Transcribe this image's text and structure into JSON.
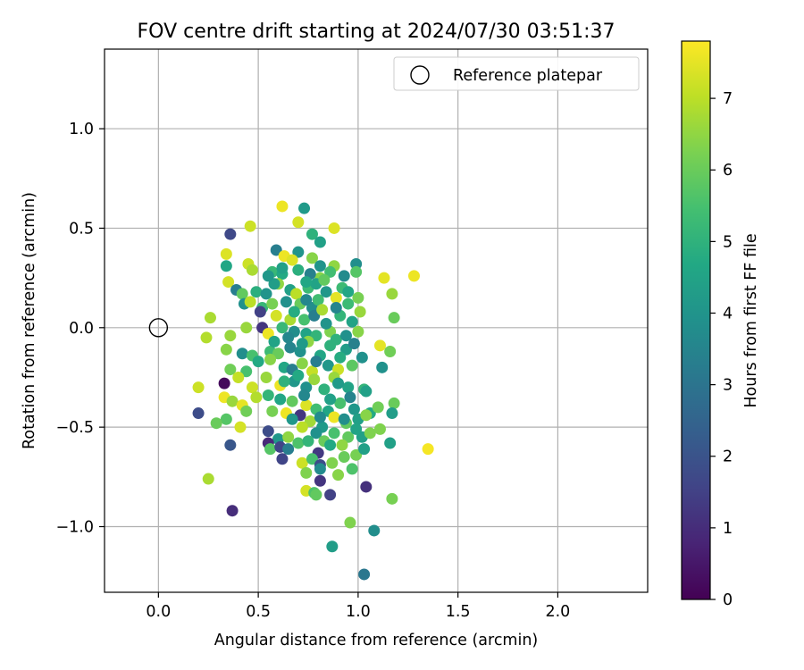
{
  "chart_data": {
    "type": "scatter",
    "title": "FOV centre drift starting at 2024/07/30 03:51:37",
    "xlabel": "Angular distance from reference (arcmin)",
    "ylabel": "Rotation from reference (arcmin)",
    "xlim": [
      -0.27,
      2.45
    ],
    "ylim": [
      -1.33,
      1.4
    ],
    "xticks": [
      "0.0",
      "0.5",
      "1.0",
      "1.5",
      "2.0"
    ],
    "xtick_values": [
      0.0,
      0.5,
      1.0,
      1.5,
      2.0
    ],
    "yticks": [
      "−1.0",
      "−0.5",
      "0.0",
      "0.5",
      "1.0"
    ],
    "ytick_values": [
      -1.0,
      -0.5,
      0.0,
      0.5,
      1.0
    ],
    "grid": true,
    "colormap": "viridis",
    "colorbar": {
      "label": "Hours from first FF file",
      "range": [
        0,
        7.8
      ],
      "ticks": [
        "0",
        "1",
        "2",
        "3",
        "4",
        "5",
        "6",
        "7"
      ],
      "tick_values": [
        0,
        1,
        2,
        3,
        4,
        5,
        6,
        7
      ]
    },
    "legend": {
      "label": "Reference platepar",
      "placement": "top-right"
    },
    "reference_point": {
      "x": 0.0,
      "y": 0.0
    },
    "points": [
      [
        0.73,
        0.6,
        4.2
      ],
      [
        0.62,
        0.61,
        7.6
      ],
      [
        0.7,
        0.53,
        7.3
      ],
      [
        0.46,
        0.51,
        7.2
      ],
      [
        0.36,
        0.47,
        1.7
      ],
      [
        0.88,
        0.5,
        7.4
      ],
      [
        0.77,
        0.47,
        5.0
      ],
      [
        0.81,
        0.43,
        4.4
      ],
      [
        0.59,
        0.39,
        3.3
      ],
      [
        0.7,
        0.38,
        4.0
      ],
      [
        0.34,
        0.37,
        7.4
      ],
      [
        0.63,
        0.36,
        7.6
      ],
      [
        0.67,
        0.34,
        7.4
      ],
      [
        0.77,
        0.35,
        6.4
      ],
      [
        0.88,
        0.31,
        6.5
      ],
      [
        0.99,
        0.32,
        3.8
      ],
      [
        0.34,
        0.31,
        4.6
      ],
      [
        0.45,
        0.32,
        7.2
      ],
      [
        0.47,
        0.29,
        6.8
      ],
      [
        0.57,
        0.28,
        5.2
      ],
      [
        0.62,
        0.27,
        4.7
      ],
      [
        0.7,
        0.29,
        4.9
      ],
      [
        0.81,
        0.25,
        6.4
      ],
      [
        0.86,
        0.28,
        5.4
      ],
      [
        0.99,
        0.28,
        5.7
      ],
      [
        1.13,
        0.25,
        7.5
      ],
      [
        1.28,
        0.26,
        7.6
      ],
      [
        0.35,
        0.23,
        7.3
      ],
      [
        0.39,
        0.19,
        3.3
      ],
      [
        0.42,
        0.17,
        5.9
      ],
      [
        0.49,
        0.18,
        4.9
      ],
      [
        0.54,
        0.17,
        4.0
      ],
      [
        0.6,
        0.22,
        6.5
      ],
      [
        0.66,
        0.19,
        4.4
      ],
      [
        0.69,
        0.17,
        7.0
      ],
      [
        0.75,
        0.2,
        5.3
      ],
      [
        0.79,
        0.22,
        4.5
      ],
      [
        0.83,
        0.24,
        5.9
      ],
      [
        0.92,
        0.2,
        5.3
      ],
      [
        1.0,
        0.15,
        6.2
      ],
      [
        1.17,
        0.17,
        6.6
      ],
      [
        0.43,
        0.12,
        3.9
      ],
      [
        0.46,
        0.13,
        7.0
      ],
      [
        0.52,
        0.1,
        5.2
      ],
      [
        0.57,
        0.12,
        6.2
      ],
      [
        0.64,
        0.13,
        3.9
      ],
      [
        0.71,
        0.12,
        6.0
      ],
      [
        0.77,
        0.1,
        3.8
      ],
      [
        0.8,
        0.14,
        5.4
      ],
      [
        0.89,
        0.15,
        7.5
      ],
      [
        0.95,
        0.12,
        5.3
      ],
      [
        1.01,
        0.08,
        6.6
      ],
      [
        0.51,
        0.08,
        1.5
      ],
      [
        0.59,
        0.06,
        7.3
      ],
      [
        0.66,
        0.04,
        6.8
      ],
      [
        0.73,
        0.04,
        5.5
      ],
      [
        0.78,
        0.06,
        3.3
      ],
      [
        0.82,
        0.09,
        6.8
      ],
      [
        0.91,
        0.06,
        5.1
      ],
      [
        0.97,
        0.03,
        4.5
      ],
      [
        1.18,
        0.05,
        6.0
      ],
      [
        0.26,
        0.05,
        6.8
      ],
      [
        0.44,
        0.0,
        6.6
      ],
      [
        0.52,
        0.0,
        1.2
      ],
      [
        0.55,
        -0.03,
        7.6
      ],
      [
        0.62,
        0.0,
        5.2
      ],
      [
        0.68,
        -0.02,
        3.8
      ],
      [
        0.74,
        -0.03,
        4.5
      ],
      [
        0.79,
        -0.04,
        5.1
      ],
      [
        0.86,
        -0.02,
        6.3
      ],
      [
        0.89,
        -0.06,
        5.0
      ],
      [
        1.0,
        -0.02,
        6.4
      ],
      [
        1.11,
        -0.09,
        7.5
      ],
      [
        0.24,
        -0.05,
        6.9
      ],
      [
        0.36,
        -0.04,
        6.6
      ],
      [
        0.34,
        -0.11,
        6.4
      ],
      [
        0.42,
        -0.13,
        3.8
      ],
      [
        0.47,
        -0.14,
        5.5
      ],
      [
        0.56,
        -0.12,
        5.3
      ],
      [
        0.6,
        -0.13,
        6.0
      ],
      [
        0.66,
        -0.1,
        3.5
      ],
      [
        0.71,
        -0.12,
        3.9
      ],
      [
        0.75,
        -0.07,
        6.5
      ],
      [
        0.81,
        -0.14,
        4.6
      ],
      [
        0.86,
        -0.09,
        5.0
      ],
      [
        0.94,
        -0.11,
        4.3
      ],
      [
        1.02,
        -0.15,
        3.9
      ],
      [
        1.16,
        -0.12,
        6.1
      ],
      [
        0.36,
        -0.21,
        6.1
      ],
      [
        0.44,
        -0.22,
        5.5
      ],
      [
        0.5,
        -0.17,
        4.7
      ],
      [
        0.56,
        -0.16,
        6.4
      ],
      [
        0.63,
        -0.2,
        4.6
      ],
      [
        0.67,
        -0.21,
        3.3
      ],
      [
        0.72,
        -0.18,
        6.4
      ],
      [
        0.77,
        -0.22,
        7.1
      ],
      [
        0.85,
        -0.19,
        4.1
      ],
      [
        0.9,
        -0.21,
        7.2
      ],
      [
        0.97,
        -0.19,
        5.8
      ],
      [
        1.12,
        -0.2,
        3.9
      ],
      [
        0.2,
        -0.3,
        7.2
      ],
      [
        0.33,
        -0.28,
        0.2
      ],
      [
        0.4,
        -0.25,
        7.1
      ],
      [
        0.47,
        -0.3,
        7.2
      ],
      [
        0.54,
        -0.25,
        6.6
      ],
      [
        0.61,
        -0.29,
        7.6
      ],
      [
        0.68,
        -0.27,
        4.1
      ],
      [
        0.74,
        -0.3,
        3.9
      ],
      [
        0.78,
        -0.26,
        6.6
      ],
      [
        0.83,
        -0.31,
        5.0
      ],
      [
        0.88,
        -0.25,
        6.6
      ],
      [
        0.95,
        -0.3,
        4.5
      ],
      [
        1.03,
        -0.31,
        5.1
      ],
      [
        1.04,
        -0.32,
        4.4
      ],
      [
        0.33,
        -0.35,
        7.6
      ],
      [
        0.37,
        -0.37,
        6.6
      ],
      [
        0.42,
        -0.39,
        7.5
      ],
      [
        0.49,
        -0.35,
        6.9
      ],
      [
        0.55,
        -0.34,
        5.1
      ],
      [
        0.61,
        -0.36,
        4.6
      ],
      [
        0.67,
        -0.37,
        5.9
      ],
      [
        0.74,
        -0.39,
        7.4
      ],
      [
        0.79,
        -0.41,
        5.4
      ],
      [
        0.85,
        -0.42,
        4.6
      ],
      [
        0.91,
        -0.38,
        5.5
      ],
      [
        0.98,
        -0.41,
        4.1
      ],
      [
        1.06,
        -0.43,
        4.7
      ],
      [
        1.18,
        -0.38,
        6.0
      ],
      [
        0.2,
        -0.43,
        1.8
      ],
      [
        0.34,
        -0.46,
        5.7
      ],
      [
        0.44,
        -0.42,
        6.1
      ],
      [
        0.57,
        -0.42,
        6.2
      ],
      [
        0.64,
        -0.43,
        7.6
      ],
      [
        0.71,
        -0.44,
        1.2
      ],
      [
        0.76,
        -0.47,
        6.7
      ],
      [
        0.82,
        -0.5,
        4.2
      ],
      [
        0.88,
        -0.45,
        7.6
      ],
      [
        0.94,
        -0.48,
        5.9
      ],
      [
        1.0,
        -0.46,
        4.4
      ],
      [
        1.04,
        -0.44,
        6.4
      ],
      [
        1.1,
        -0.4,
        6.1
      ],
      [
        1.17,
        -0.43,
        4.3
      ],
      [
        0.29,
        -0.48,
        6.0
      ],
      [
        0.41,
        -0.5,
        7.3
      ],
      [
        0.55,
        -0.52,
        1.8
      ],
      [
        0.6,
        -0.56,
        4.1
      ],
      [
        0.65,
        -0.55,
        6.5
      ],
      [
        0.72,
        -0.5,
        7.0
      ],
      [
        0.79,
        -0.53,
        3.9
      ],
      [
        0.83,
        -0.57,
        6.0
      ],
      [
        0.88,
        -0.53,
        5.5
      ],
      [
        0.95,
        -0.55,
        5.9
      ],
      [
        1.02,
        -0.55,
        4.4
      ],
      [
        1.06,
        -0.53,
        6.3
      ],
      [
        1.11,
        -0.51,
        6.3
      ],
      [
        1.16,
        -0.58,
        4.4
      ],
      [
        0.36,
        -0.59,
        2.1
      ],
      [
        0.55,
        -0.58,
        0.9
      ],
      [
        0.56,
        -0.61,
        5.7
      ],
      [
        0.61,
        -0.6,
        1.6
      ],
      [
        0.65,
        -0.61,
        3.3
      ],
      [
        0.7,
        -0.58,
        5.6
      ],
      [
        0.75,
        -0.57,
        5.1
      ],
      [
        0.8,
        -0.63,
        1.3
      ],
      [
        0.86,
        -0.59,
        4.7
      ],
      [
        0.92,
        -0.59,
        6.5
      ],
      [
        0.99,
        -0.64,
        6.2
      ],
      [
        1.03,
        -0.61,
        4.4
      ],
      [
        1.35,
        -0.61,
        7.7
      ],
      [
        0.62,
        -0.66,
        1.6
      ],
      [
        0.72,
        -0.68,
        7.2
      ],
      [
        0.77,
        -0.66,
        5.5
      ],
      [
        0.81,
        -0.69,
        1.8
      ],
      [
        0.87,
        -0.68,
        6.3
      ],
      [
        0.93,
        -0.65,
        6.0
      ],
      [
        0.97,
        -0.71,
        5.6
      ],
      [
        0.74,
        -0.73,
        6.3
      ],
      [
        0.81,
        -0.71,
        3.7
      ],
      [
        0.9,
        -0.74,
        6.4
      ],
      [
        0.25,
        -0.76,
        6.8
      ],
      [
        0.81,
        -0.77,
        1.2
      ],
      [
        1.04,
        -0.8,
        1.1
      ],
      [
        0.74,
        -0.82,
        7.3
      ],
      [
        0.78,
        -0.83,
        5.6
      ],
      [
        0.86,
        -0.84,
        1.5
      ],
      [
        0.79,
        -0.84,
        5.9
      ],
      [
        1.17,
        -0.86,
        6.2
      ],
      [
        0.37,
        -0.92,
        1.0
      ],
      [
        0.96,
        -0.98,
        6.3
      ],
      [
        1.08,
        -1.02,
        3.8
      ],
      [
        0.87,
        -1.1,
        4.3
      ],
      [
        1.03,
        -1.24,
        3.1
      ],
      [
        0.58,
        0.22,
        4.3
      ],
      [
        0.74,
        0.14,
        3.6
      ],
      [
        0.68,
        0.08,
        4.8
      ],
      [
        0.76,
        0.27,
        3.4
      ],
      [
        0.84,
        0.18,
        4.1
      ],
      [
        0.93,
        0.26,
        3.7
      ],
      [
        0.95,
        0.18,
        4.6
      ],
      [
        0.89,
        0.1,
        3.5
      ],
      [
        0.84,
        0.02,
        4.0
      ],
      [
        0.72,
        -0.08,
        4.2
      ],
      [
        0.65,
        -0.05,
        3.6
      ],
      [
        0.58,
        -0.07,
        4.5
      ],
      [
        0.94,
        -0.04,
        3.9
      ],
      [
        0.98,
        -0.08,
        3.4
      ],
      [
        0.91,
        -0.15,
        4.8
      ],
      [
        0.79,
        -0.17,
        3.3
      ],
      [
        0.7,
        -0.24,
        4.7
      ],
      [
        0.63,
        -0.27,
        5.0
      ],
      [
        0.9,
        -0.28,
        4.2
      ],
      [
        0.96,
        -0.35,
        3.5
      ],
      [
        0.86,
        -0.36,
        4.4
      ],
      [
        0.81,
        -0.45,
        3.7
      ],
      [
        0.93,
        -0.46,
        3.8
      ],
      [
        0.99,
        -0.51,
        4.5
      ],
      [
        0.73,
        -0.34,
        3.6
      ],
      [
        0.67,
        -0.46,
        4.1
      ],
      [
        0.74,
        0.23,
        4.6
      ],
      [
        0.81,
        0.31,
        4.0
      ],
      [
        0.62,
        0.3,
        4.4
      ],
      [
        0.55,
        0.26,
        4.1
      ]
    ]
  }
}
